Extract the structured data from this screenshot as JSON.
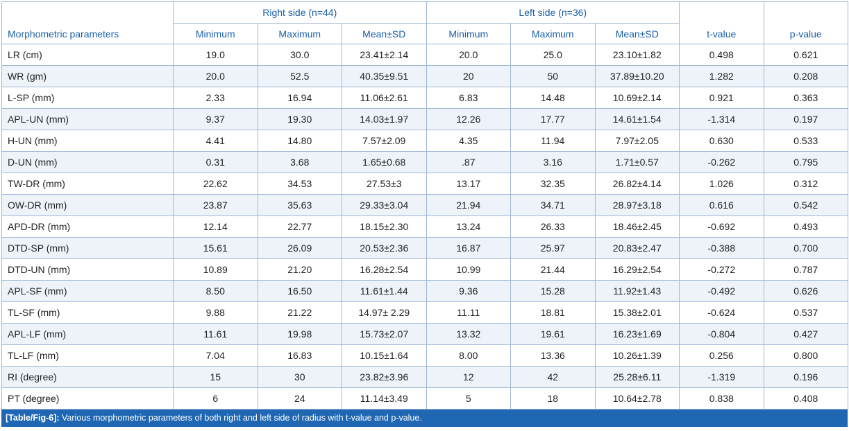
{
  "table": {
    "group_headers": {
      "right": "Right side (n=44)",
      "left": "Left side (n=36)"
    },
    "columns": {
      "param": "Morphometric parameters",
      "minimum": "Minimum",
      "maximum": "Maximum",
      "mean_sd": "Mean±SD",
      "t_value": "t-value",
      "p_value": "p-value"
    },
    "rows": [
      [
        "LR (cm)",
        "19.0",
        "30.0",
        "23.41±2.14",
        "20.0",
        "25.0",
        "23.10±1.82",
        "0.498",
        "0.621"
      ],
      [
        "WR (gm)",
        "20.0",
        "52.5",
        "40.35±9.51",
        "20",
        "50",
        "37.89±10.20",
        "1.282",
        "0.208"
      ],
      [
        "L-SP (mm)",
        "2.33",
        "16.94",
        "11.06±2.61",
        "6.83",
        "14.48",
        "10.69±2.14",
        "0.921",
        "0.363"
      ],
      [
        "APL-UN (mm)",
        "9.37",
        "19.30",
        "14.03±1.97",
        "12.26",
        "17.77",
        "14.61±1.54",
        "-1.314",
        "0.197"
      ],
      [
        "H-UN (mm)",
        "4.41",
        "14.80",
        "7.57±2.09",
        "4.35",
        "11.94",
        "7.97±2.05",
        "0.630",
        "0.533"
      ],
      [
        "D-UN (mm)",
        "0.31",
        "3.68",
        "1.65±0.68",
        ".87",
        "3.16",
        "1.71±0.57",
        "-0.262",
        "0.795"
      ],
      [
        "TW-DR (mm)",
        "22.62",
        "34.53",
        "27.53±3",
        "13.17",
        "32.35",
        "26.82±4.14",
        "1.026",
        "0.312"
      ],
      [
        "OW-DR (mm)",
        "23.87",
        "35.63",
        "29.33±3.04",
        "21.94",
        "34.71",
        "28.97±3.18",
        "0.616",
        "0.542"
      ],
      [
        "APD-DR (mm)",
        "12.14",
        "22.77",
        "18.15±2.30",
        "13.24",
        "26.33",
        "18.46±2.45",
        "-0.692",
        "0.493"
      ],
      [
        "DTD-SP (mm)",
        "15.61",
        "26.09",
        "20.53±2.36",
        "16.87",
        "25.97",
        "20.83±2.47",
        "-0.388",
        "0.700"
      ],
      [
        "DTD-UN (mm)",
        "10.89",
        "21.20",
        "16.28±2.54",
        "10.99",
        "21.44",
        "16.29±2.54",
        "-0.272",
        "0.787"
      ],
      [
        "APL-SF (mm)",
        "8.50",
        "16.50",
        "11.61±1.44",
        "9.36",
        "15.28",
        "11.92±1.43",
        "-0.492",
        "0.626"
      ],
      [
        "TL-SF (mm)",
        "9.88",
        "21.22",
        "14.97± 2.29",
        "11.11",
        "18.81",
        "15.38±2.01",
        "-0.624",
        "0.537"
      ],
      [
        "APL-LF (mm)",
        "11.61",
        "19.98",
        "15.73±2.07",
        "13.32",
        "19.61",
        "16.23±1.69",
        "-0.804",
        "0.427"
      ],
      [
        "TL-LF (mm)",
        "7.04",
        "16.83",
        "10.15±1.64",
        "8.00",
        "13.36",
        "10.26±1.39",
        "0.256",
        "0.800"
      ],
      [
        "RI (degree)",
        "15",
        "30",
        "23.82±3.96",
        "12",
        "42",
        "25.28±6.11",
        "-1.319",
        "0.196"
      ],
      [
        "PT (degree)",
        "6",
        "24",
        "11.14±3.49",
        "5",
        "18",
        "10.64±2.78",
        "0.838",
        "0.408"
      ]
    ]
  },
  "caption": {
    "label": "[Table/Fig-6]:",
    "text": " Various morphometric parameters of both right and left side of radius with t-value and p-value."
  },
  "colors": {
    "header_text": "#1a5fa8",
    "caption_bg": "#1f66b3",
    "row_stripe": "#eef3fa",
    "border": "#9fb8d4"
  }
}
